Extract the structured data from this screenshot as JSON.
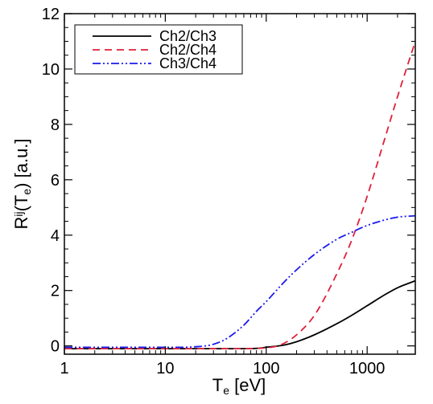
{
  "chart_data": {
    "type": "line",
    "xscale": "log",
    "xlim": [
      1,
      3000
    ],
    "ylim": [
      -0.3,
      12
    ],
    "xticks": [
      1,
      10,
      100,
      1000
    ],
    "xtick_labels": [
      "1",
      "10",
      "100",
      "1000"
    ],
    "yticks": [
      0,
      2,
      4,
      6,
      8,
      10,
      12
    ],
    "ytick_labels": [
      "0",
      "2",
      "4",
      "6",
      "8",
      "10",
      "12"
    ],
    "xlabel": {
      "main": "T",
      "sub": "e",
      "rest": " [eV]"
    },
    "ylabel": {
      "main": "R",
      "sup": "ij",
      "mid": "(T",
      "sub": "e",
      "rest": ") [a.u.]"
    },
    "legend_position": "top-left",
    "grid": false,
    "series": [
      {
        "name": "Ch2/Ch3",
        "color": "#000000",
        "dash": "solid",
        "x": [
          1,
          10,
          50,
          80,
          100,
          150,
          200,
          300,
          500,
          700,
          1000,
          1500,
          2000,
          3000
        ],
        "y": [
          -0.1,
          -0.1,
          -0.1,
          -0.09,
          -0.05,
          0.03,
          0.15,
          0.4,
          0.8,
          1.1,
          1.45,
          1.85,
          2.1,
          2.35
        ]
      },
      {
        "name": "Ch2/Ch4",
        "color": "#e0203a",
        "dash": "dashed",
        "x": [
          1,
          10,
          50,
          80,
          100,
          130,
          160,
          200,
          300,
          500,
          700,
          1000,
          1500,
          2000,
          3000
        ],
        "y": [
          -0.1,
          -0.1,
          -0.1,
          -0.09,
          -0.07,
          0.0,
          0.15,
          0.4,
          1.1,
          2.6,
          3.8,
          5.4,
          7.5,
          9.0,
          11.0
        ]
      },
      {
        "name": "Ch3/Ch4",
        "color": "#1a1aee",
        "dash": "dash-dot-dot",
        "x": [
          1,
          5,
          15,
          20,
          25,
          30,
          40,
          60,
          80,
          100,
          150,
          200,
          300,
          500,
          700,
          1000,
          1500,
          2000,
          3000
        ],
        "y": [
          -0.05,
          -0.05,
          -0.05,
          -0.03,
          0.0,
          0.06,
          0.25,
          0.75,
          1.25,
          1.6,
          2.3,
          2.75,
          3.3,
          3.85,
          4.1,
          4.35,
          4.55,
          4.65,
          4.7
        ]
      }
    ]
  }
}
